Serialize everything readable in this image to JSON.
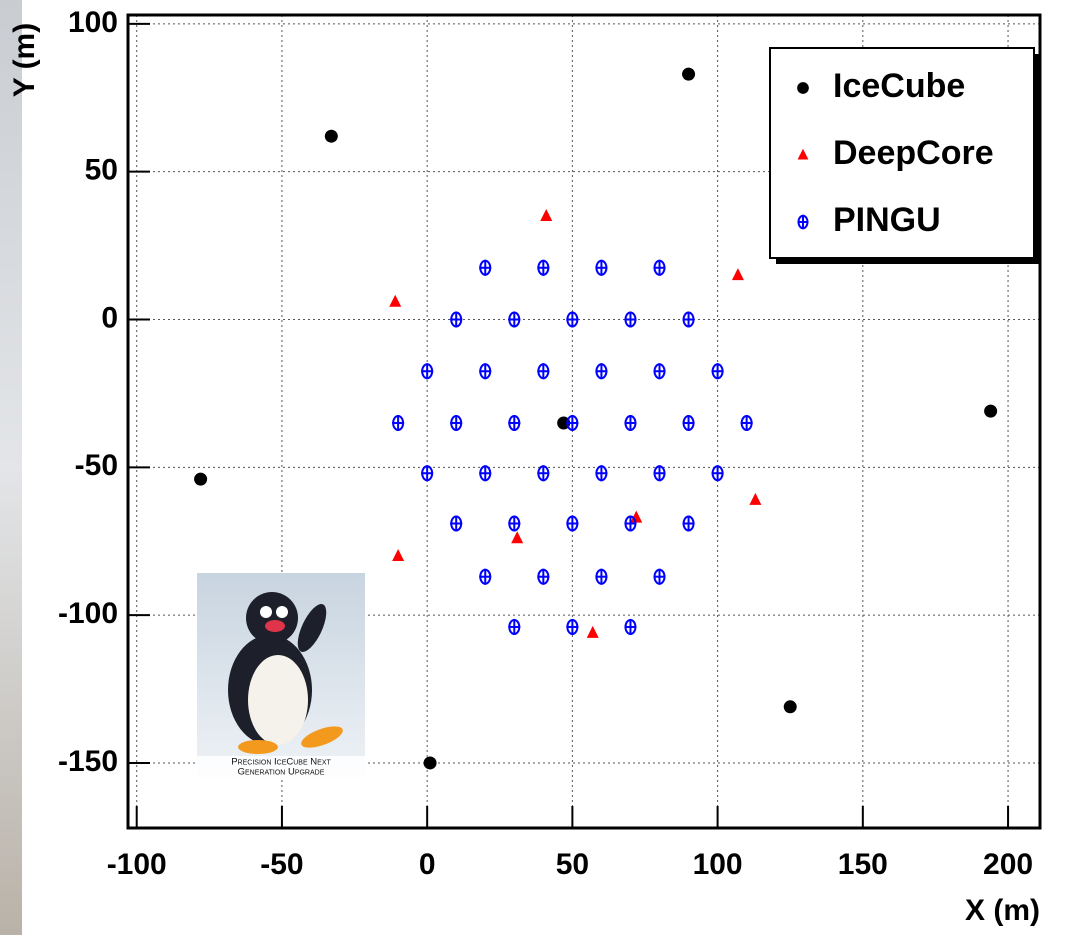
{
  "chart_data": {
    "type": "scatter",
    "x_label": "X (m)",
    "y_label": "Y (m)",
    "xlim": [
      -103,
      211
    ],
    "ylim": [
      -172,
      103
    ],
    "xticks": [
      -100,
      -50,
      0,
      50,
      100,
      150,
      200
    ],
    "yticks": [
      -150,
      -100,
      -50,
      0,
      50,
      100
    ],
    "grid": true,
    "legend": "upper right",
    "inset_caption": [
      "Precision IceCube Next",
      "Generation Upgrade"
    ],
    "series": [
      {
        "name": "IceCube",
        "color": "#000000",
        "marker": "circle",
        "x": [
          -33,
          90,
          194,
          -78,
          47,
          1,
          125
        ],
        "values": [
          62,
          83,
          -31,
          -54,
          -35,
          -150,
          -131
        ]
      },
      {
        "name": "DeepCore",
        "color": "#ff0000",
        "marker": "triangle",
        "x": [
          41,
          -11,
          107,
          113,
          72,
          31,
          -10,
          57
        ],
        "values": [
          35,
          6,
          15,
          -61,
          -67,
          -74,
          -80,
          -106
        ]
      },
      {
        "name": "PINGU",
        "color": "#0000ff",
        "marker": "cross-circle",
        "x": [
          20,
          40,
          60,
          80,
          10,
          30,
          50,
          70,
          90,
          0,
          20,
          40,
          60,
          80,
          100,
          -10,
          10,
          30,
          50,
          70,
          90,
          110,
          0,
          20,
          40,
          60,
          80,
          100,
          10,
          30,
          50,
          70,
          90,
          20,
          40,
          60,
          80,
          30,
          50,
          70
        ],
        "values": [
          17.5,
          17.5,
          17.5,
          17.5,
          0,
          0,
          0,
          0,
          0,
          -17.5,
          -17.5,
          -17.5,
          -17.5,
          -17.5,
          -17.5,
          -35,
          -35,
          -35,
          -35,
          -35,
          -35,
          -35,
          -52,
          -52,
          -52,
          -52,
          -52,
          -52,
          -69,
          -69,
          -69,
          -69,
          -69,
          -87,
          -87,
          -87,
          -87,
          -104,
          -104,
          -104
        ]
      }
    ]
  }
}
